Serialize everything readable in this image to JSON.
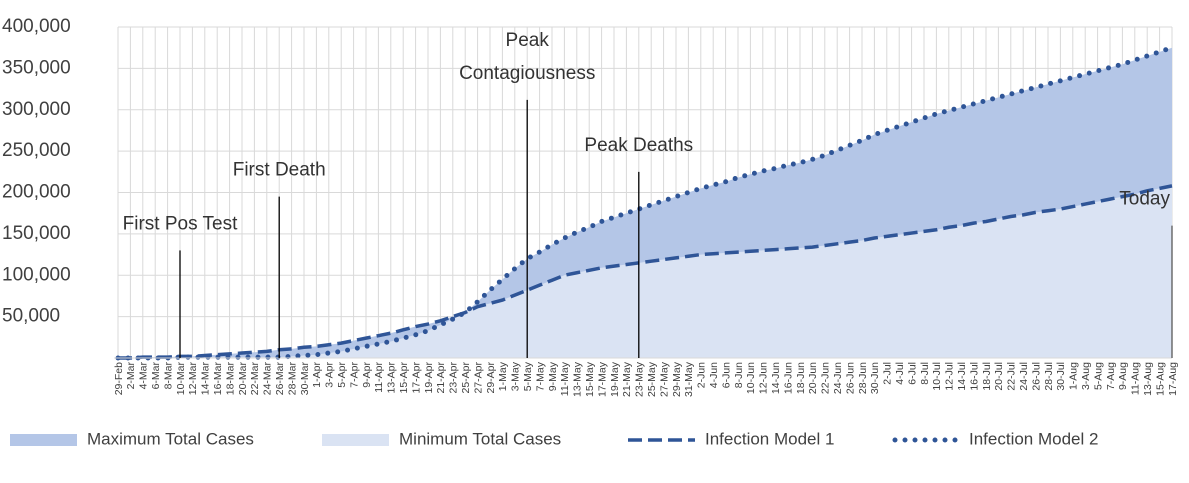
{
  "chart_data": {
    "type": "area-line",
    "categories": [
      "29-Feb",
      "2-Mar",
      "4-Mar",
      "6-Mar",
      "8-Mar",
      "10-Mar",
      "12-Mar",
      "14-Mar",
      "16-Mar",
      "18-Mar",
      "20-Mar",
      "22-Mar",
      "24-Mar",
      "26-Mar",
      "28-Mar",
      "30-Mar",
      "1-Apr",
      "3-Apr",
      "5-Apr",
      "7-Apr",
      "9-Apr",
      "11-Apr",
      "13-Apr",
      "15-Apr",
      "17-Apr",
      "19-Apr",
      "21-Apr",
      "23-Apr",
      "25-Apr",
      "27-Apr",
      "29-Apr",
      "1-May",
      "3-May",
      "5-May",
      "7-May",
      "9-May",
      "11-May",
      "13-May",
      "15-May",
      "17-May",
      "19-May",
      "21-May",
      "23-May",
      "25-May",
      "27-May",
      "29-May",
      "31-May",
      "2-Jun",
      "4-Jun",
      "6-Jun",
      "8-Jun",
      "10-Jun",
      "12-Jun",
      "14-Jun",
      "16-Jun",
      "18-Jun",
      "20-Jun",
      "22-Jun",
      "24-Jun",
      "26-Jun",
      "28-Jun",
      "30-Jun",
      "2-Jul",
      "4-Jul",
      "6-Jul",
      "8-Jul",
      "10-Jul",
      "12-Jul",
      "14-Jul",
      "16-Jul",
      "18-Jul",
      "20-Jul",
      "22-Jul",
      "24-Jul",
      "26-Jul",
      "28-Jul",
      "30-Jul",
      "1-Aug",
      "3-Aug",
      "5-Aug",
      "7-Aug",
      "9-Aug",
      "11-Aug",
      "13-Aug",
      "15-Aug",
      "17-Aug"
    ],
    "series": [
      {
        "name": "Maximum Total Cases",
        "style": "area",
        "color": "#b4c6e7",
        "values": [
          0,
          0,
          1000,
          1000,
          1000,
          2000,
          2000,
          3000,
          4000,
          5000,
          6000,
          7000,
          8000,
          10000,
          11000,
          13000,
          14000,
          16000,
          18000,
          21000,
          24000,
          27000,
          30000,
          34000,
          38000,
          41000,
          45000,
          50000,
          55000,
          68000,
          82000,
          95000,
          108000,
          120000,
          128000,
          137000,
          145000,
          152000,
          158000,
          165000,
          170000,
          175000,
          180000,
          185000,
          190000,
          195000,
          200000,
          205000,
          209000,
          213000,
          218000,
          222000,
          226000,
          229000,
          233000,
          236000,
          240000,
          245000,
          251000,
          257000,
          263000,
          270000,
          275000,
          280000,
          285000,
          290000,
          295000,
          299000,
          303000,
          307000,
          311000,
          315000,
          319000,
          323000,
          327000,
          331000,
          335000,
          339000,
          343000,
          347000,
          351000,
          355000,
          360000,
          365000,
          370000,
          375000
        ]
      },
      {
        "name": "Minimum Total Cases",
        "style": "area",
        "color": "#dae3f3",
        "values": [
          0,
          0,
          0,
          0,
          0,
          1000,
          1000,
          1000,
          1000,
          1000,
          1000,
          1000,
          1000,
          1000,
          2000,
          3000,
          4000,
          6000,
          8000,
          11000,
          14000,
          17000,
          20000,
          24000,
          28000,
          33000,
          40000,
          47000,
          55000,
          62000,
          66000,
          70000,
          76000,
          82000,
          88000,
          94000,
          100000,
          103000,
          106000,
          109000,
          111000,
          113000,
          115000,
          117000,
          119000,
          121000,
          123000,
          125000,
          126000,
          127000,
          128000,
          129000,
          130000,
          131000,
          132000,
          133000,
          134000,
          136000,
          138000,
          140000,
          142000,
          145000,
          147000,
          149000,
          151000,
          153000,
          155000,
          158000,
          160000,
          163000,
          165000,
          168000,
          171000,
          173000,
          176000,
          178000,
          180000,
          183000,
          186000,
          189000,
          192000,
          195000,
          198000,
          202000,
          205000,
          208000
        ]
      },
      {
        "name": "Infection Model 1",
        "style": "dashed",
        "color": "#2f5597",
        "values": [
          0,
          0,
          1000,
          1000,
          1000,
          2000,
          2000,
          3000,
          4000,
          5000,
          6000,
          7000,
          8000,
          10000,
          11000,
          13000,
          14000,
          16000,
          18000,
          21000,
          24000,
          27000,
          30000,
          34000,
          38000,
          41000,
          45000,
          50000,
          55000,
          62000,
          66000,
          70000,
          76000,
          82000,
          88000,
          94000,
          100000,
          103000,
          106000,
          109000,
          111000,
          113000,
          115000,
          117000,
          119000,
          121000,
          123000,
          125000,
          126000,
          127000,
          128000,
          129000,
          130000,
          131000,
          132000,
          133000,
          134000,
          136000,
          138000,
          140000,
          142000,
          145000,
          147000,
          149000,
          151000,
          153000,
          155000,
          158000,
          160000,
          163000,
          165000,
          168000,
          171000,
          173000,
          176000,
          178000,
          180000,
          183000,
          186000,
          189000,
          192000,
          195000,
          198000,
          202000,
          205000,
          208000
        ]
      },
      {
        "name": "Infection Model 2",
        "style": "dotted",
        "color": "#2f5597",
        "values": [
          0,
          0,
          0,
          0,
          0,
          1000,
          1000,
          1000,
          1000,
          1000,
          1000,
          1000,
          1000,
          1000,
          2000,
          3000,
          4000,
          6000,
          8000,
          11000,
          14000,
          17000,
          20000,
          24000,
          28000,
          33000,
          40000,
          47000,
          55000,
          68000,
          82000,
          95000,
          108000,
          120000,
          128000,
          137000,
          145000,
          152000,
          158000,
          165000,
          170000,
          175000,
          180000,
          185000,
          190000,
          195000,
          200000,
          205000,
          209000,
          213000,
          218000,
          222000,
          226000,
          229000,
          233000,
          236000,
          240000,
          245000,
          251000,
          257000,
          263000,
          270000,
          275000,
          280000,
          285000,
          290000,
          295000,
          299000,
          303000,
          307000,
          311000,
          315000,
          319000,
          323000,
          327000,
          331000,
          335000,
          339000,
          343000,
          347000,
          351000,
          355000,
          360000,
          365000,
          370000,
          375000
        ]
      }
    ],
    "ylim": [
      0,
      400000
    ],
    "yticks": [
      {
        "value": 50000,
        "label": "50,000"
      },
      {
        "value": 100000,
        "label": "100,000"
      },
      {
        "value": 150000,
        "label": "150,000"
      },
      {
        "value": 200000,
        "label": "200,000"
      },
      {
        "value": 250000,
        "label": "250,000"
      },
      {
        "value": 300000,
        "label": "300,000"
      },
      {
        "value": 350000,
        "label": "350,000"
      },
      {
        "value": 400000,
        "label": "400,000"
      }
    ],
    "grid": true,
    "legend": "bottom",
    "annotations": [
      {
        "text": [
          "First Pos Test"
        ],
        "x": "10-Mar",
        "y": 130000
      },
      {
        "text": [
          "First Death"
        ],
        "x": "26-Mar",
        "y": 195000
      },
      {
        "text": [
          "Peak",
          "Contagiousness"
        ],
        "x": "5-May",
        "y": 312000
      },
      {
        "text": [
          "Peak Deaths"
        ],
        "x": "23-May",
        "y": 225000
      },
      {
        "text": [
          "Today"
        ],
        "x": "17-Aug",
        "y": 160000
      }
    ]
  }
}
